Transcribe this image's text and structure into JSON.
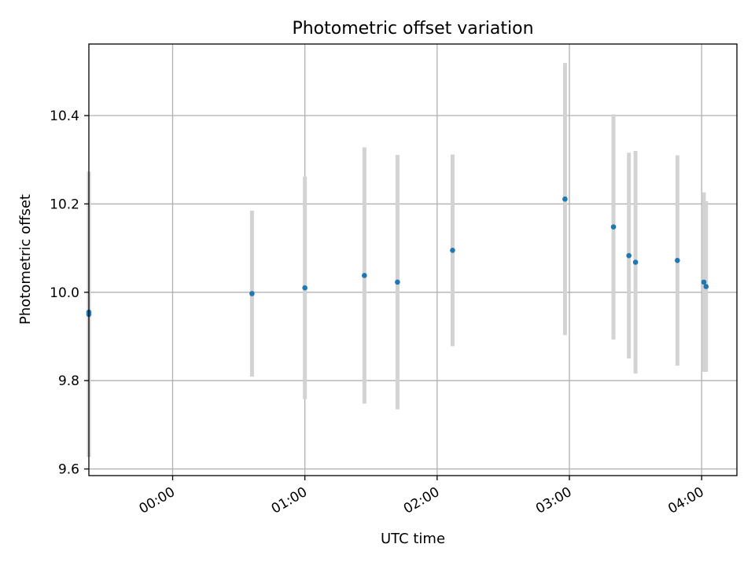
{
  "chart_data": {
    "type": "scatter",
    "title": "Photometric offset variation",
    "xlabel": "UTC time",
    "ylabel": "Photometric offset",
    "x_unit": "UTC",
    "xlim": [
      "23:22",
      "04:16"
    ],
    "ylim": [
      9.585,
      10.562
    ],
    "x_ticks": [
      "00:00",
      "01:00",
      "02:00",
      "03:00",
      "04:00"
    ],
    "y_ticks": [
      "9.6",
      "9.8",
      "10.0",
      "10.2",
      "10.4"
    ],
    "grid": true,
    "points": [
      {
        "x": "23:22",
        "y": 9.95,
        "err": 0.323
      },
      {
        "x": "23:22",
        "y": 9.955,
        "err": 0.318
      },
      {
        "x": "00:36",
        "y": 9.997,
        "err": 0.188
      },
      {
        "x": "01:00",
        "y": 10.01,
        "err": 0.252
      },
      {
        "x": "01:27",
        "y": 10.038,
        "err": 0.29
      },
      {
        "x": "01:42",
        "y": 10.023,
        "err": 0.288
      },
      {
        "x": "02:07",
        "y": 10.095,
        "err": 0.217
      },
      {
        "x": "02:58",
        "y": 10.211,
        "err": 0.308
      },
      {
        "x": "03:20",
        "y": 10.148,
        "err": 0.255
      },
      {
        "x": "03:27",
        "y": 10.083,
        "err": 0.233
      },
      {
        "x": "03:30",
        "y": 10.068,
        "err": 0.252
      },
      {
        "x": "03:49",
        "y": 10.072,
        "err": 0.238
      },
      {
        "x": "04:01",
        "y": 10.023,
        "err": 0.203
      },
      {
        "x": "04:02",
        "y": 10.013,
        "err": 0.193
      }
    ],
    "marker_color": "#1f77b4",
    "errorbar_color": "#d3d3d3"
  }
}
